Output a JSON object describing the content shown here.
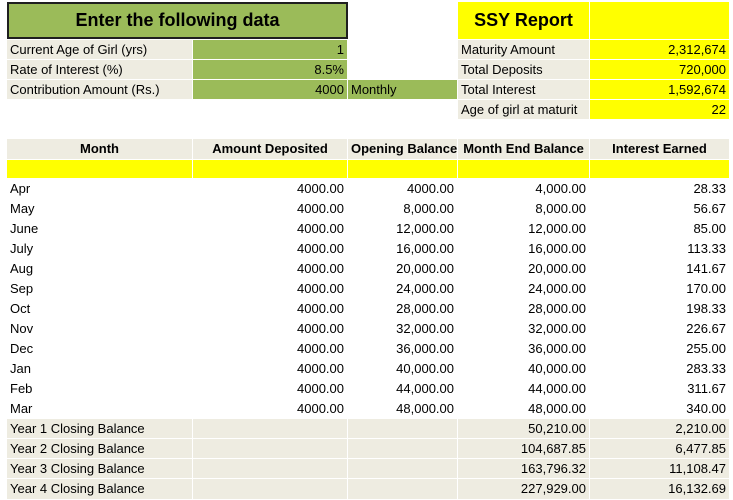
{
  "input_panel": {
    "title": "Enter the following data",
    "fields": [
      {
        "label": "Current Age of Girl (yrs)",
        "value": "1",
        "unit": ""
      },
      {
        "label": "Rate of Interest (%)",
        "value": "8.5%",
        "unit": ""
      },
      {
        "label": "Contribution Amount (Rs.)",
        "value": "4000",
        "unit": "Monthly"
      }
    ]
  },
  "report": {
    "title": "SSY Report",
    "rows": [
      {
        "label": "Maturity Amount",
        "value": "2,312,674"
      },
      {
        "label": "Total Deposits",
        "value": "720,000"
      },
      {
        "label": "Total Interest",
        "value": "1,592,674"
      },
      {
        "label": "Age of girl at maturit",
        "value": "22"
      }
    ]
  },
  "table": {
    "headers": [
      "Month",
      "Amount Deposited",
      "Opening Balance",
      "Month End Balance",
      "Interest Earned"
    ],
    "rows": [
      [
        "Apr",
        "4000.00",
        "4000.00",
        "4,000.00",
        "28.33"
      ],
      [
        "May",
        "4000.00",
        "8,000.00",
        "8,000.00",
        "56.67"
      ],
      [
        "June",
        "4000.00",
        "12,000.00",
        "12,000.00",
        "85.00"
      ],
      [
        "July",
        "4000.00",
        "16,000.00",
        "16,000.00",
        "113.33"
      ],
      [
        "Aug",
        "4000.00",
        "20,000.00",
        "20,000.00",
        "141.67"
      ],
      [
        "Sep",
        "4000.00",
        "24,000.00",
        "24,000.00",
        "170.00"
      ],
      [
        "Oct",
        "4000.00",
        "28,000.00",
        "28,000.00",
        "198.33"
      ],
      [
        "Nov",
        "4000.00",
        "32,000.00",
        "32,000.00",
        "226.67"
      ],
      [
        "Dec",
        "4000.00",
        "36,000.00",
        "36,000.00",
        "255.00"
      ],
      [
        "Jan",
        "4000.00",
        "40,000.00",
        "40,000.00",
        "283.33"
      ],
      [
        "Feb",
        "4000.00",
        "44,000.00",
        "44,000.00",
        "311.67"
      ],
      [
        "Mar",
        "4000.00",
        "48,000.00",
        "48,000.00",
        "340.00"
      ]
    ],
    "closing": [
      {
        "label": "Year 1 Closing Balance",
        "balance": "50,210.00",
        "interest": "2,210.00"
      },
      {
        "label": "Year 2 Closing Balance",
        "balance": "104,687.85",
        "interest": "6,477.85"
      },
      {
        "label": "Year 3 Closing Balance",
        "balance": "163,796.32",
        "interest": "11,108.47"
      },
      {
        "label": "Year 4 Closing Balance",
        "balance": "227,929.00",
        "interest": "16,132.69"
      }
    ]
  }
}
